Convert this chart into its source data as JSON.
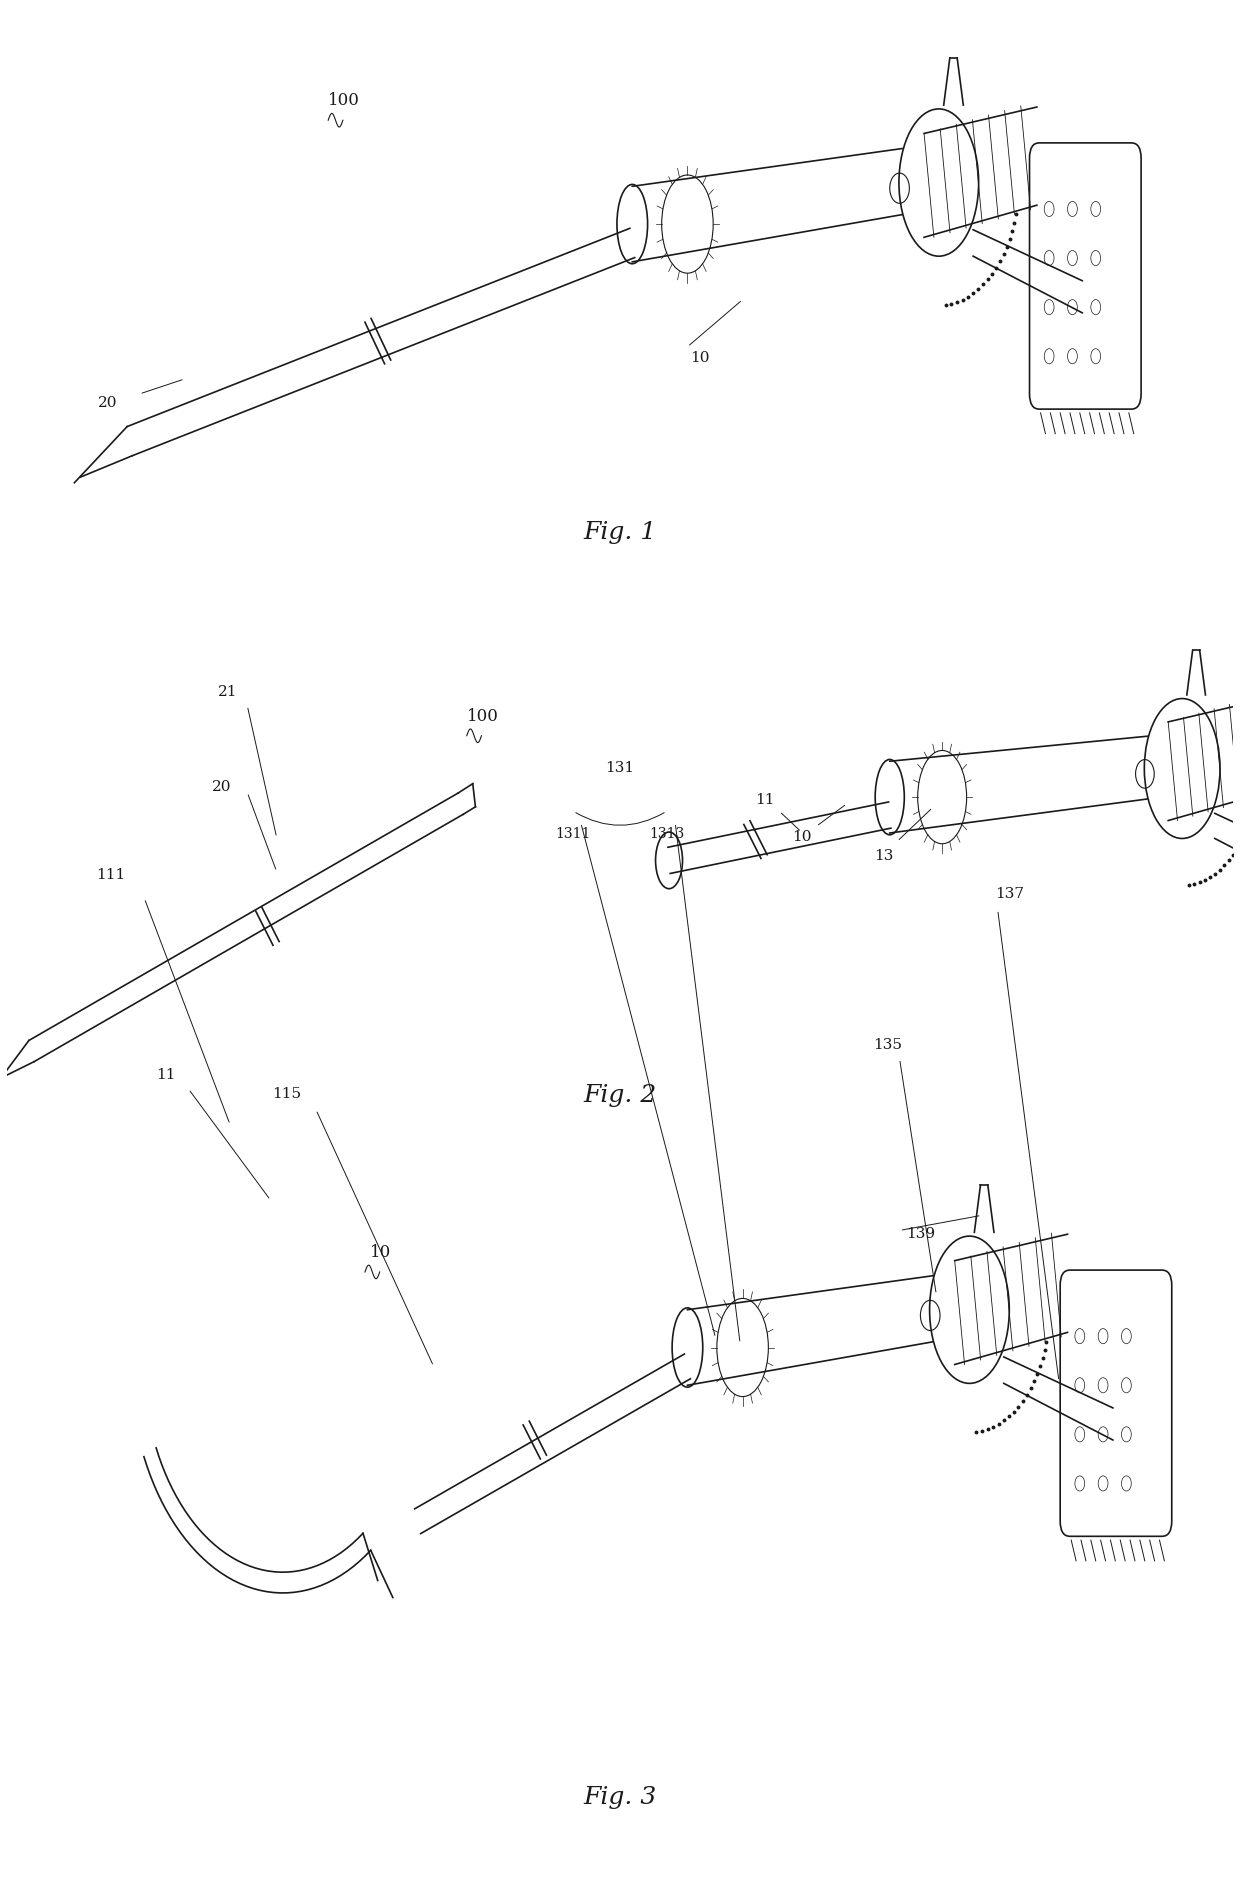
{
  "bg_color": "#ffffff",
  "line_color": "#1a1a1a",
  "fig_width": 12.4,
  "fig_height": 19.02,
  "fig1_label": "Fig. 1",
  "fig2_label": "Fig. 2",
  "fig3_label": "Fig. 3"
}
